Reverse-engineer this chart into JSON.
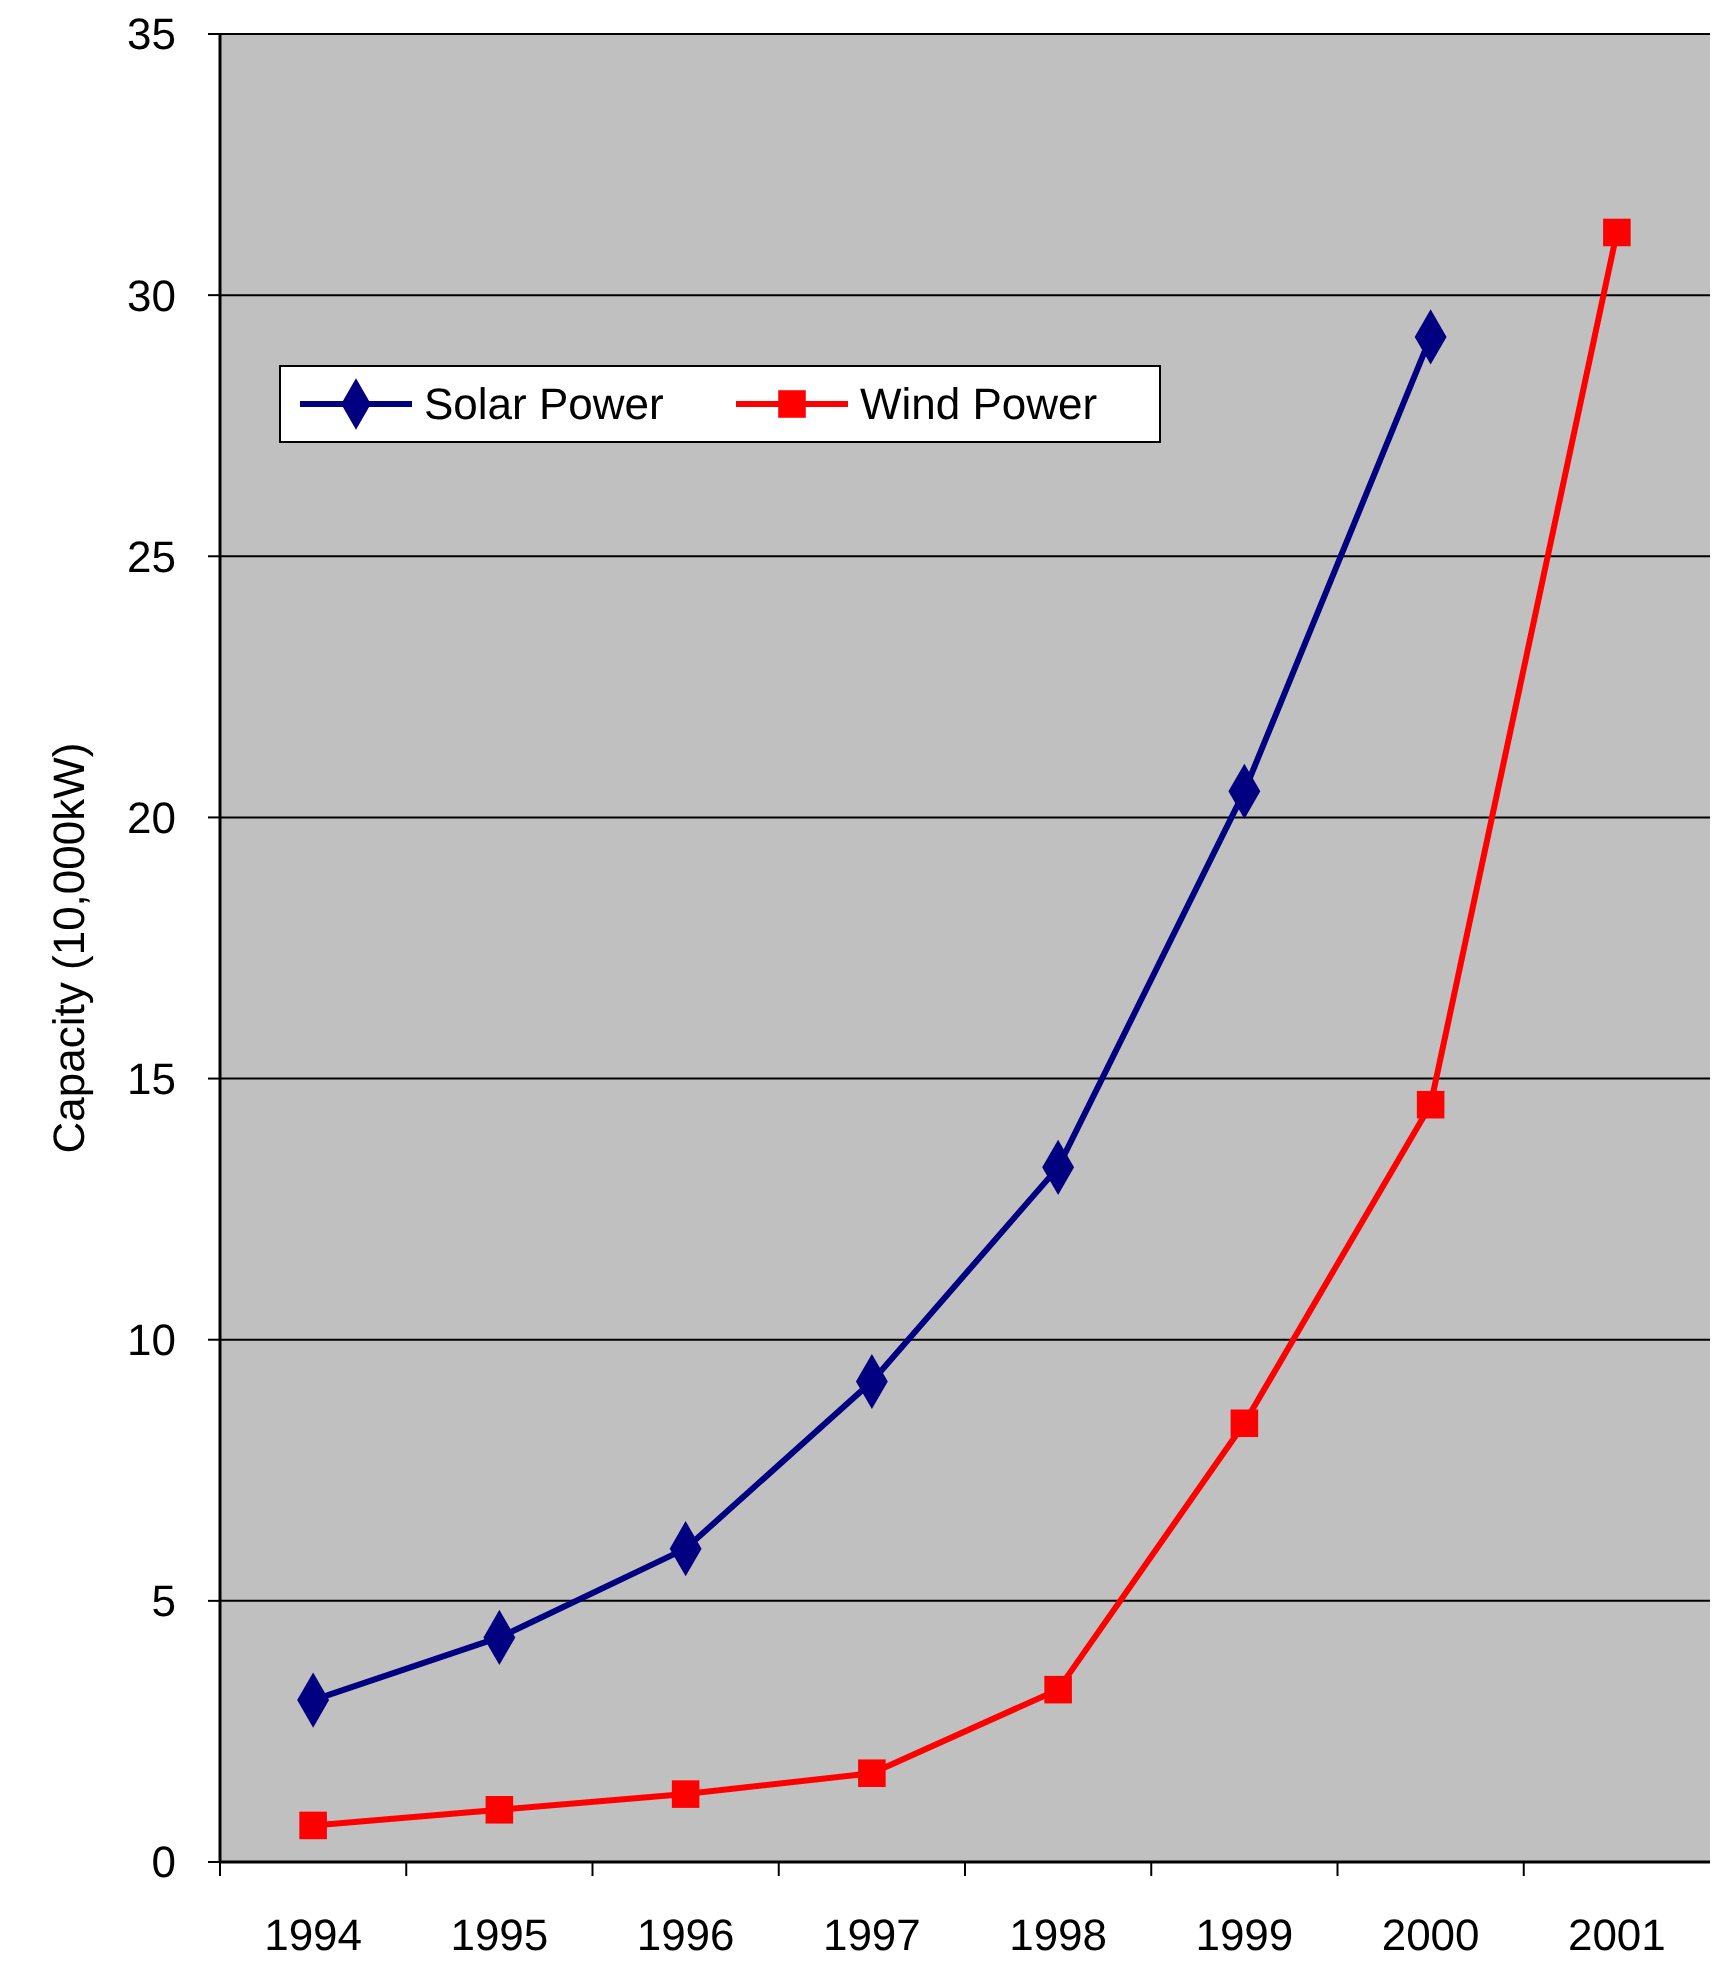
{
  "chart_data": {
    "type": "line",
    "ylabel": "Capacity (10,000kW)",
    "categories": [
      "1994",
      "1995",
      "1996",
      "1997",
      "1998",
      "1999",
      "2000",
      "2001"
    ],
    "series": [
      {
        "name": "Solar Power",
        "color": "#000080",
        "marker": "diamond",
        "values": [
          3.1,
          4.3,
          6.0,
          9.2,
          13.3,
          20.5,
          29.2,
          null
        ]
      },
      {
        "name": "Wind Power",
        "color": "#ff0000",
        "marker": "square",
        "values": [
          0.7,
          1.0,
          1.3,
          1.7,
          3.3,
          8.4,
          14.5,
          31.2
        ]
      }
    ],
    "ylim": [
      0,
      35
    ],
    "yticks": [
      0,
      5,
      10,
      15,
      20,
      25,
      30,
      35
    ],
    "grid": "y",
    "legend": "top left",
    "line_style": "solid"
  }
}
